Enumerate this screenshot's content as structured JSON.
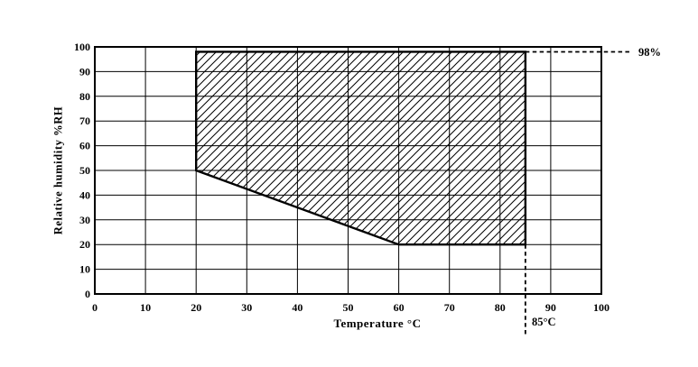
{
  "figure": {
    "background": "#ffffff",
    "line_color": "#000000"
  },
  "chart_data": {
    "type": "area",
    "title": "",
    "xlabel": "Temperature °C",
    "ylabel": "Relative humidity %RH",
    "xlim": [
      0,
      100
    ],
    "ylim": [
      0,
      100
    ],
    "xticks": [
      0,
      10,
      20,
      30,
      40,
      50,
      60,
      70,
      80,
      90,
      100
    ],
    "yticks": [
      0,
      10,
      20,
      30,
      40,
      50,
      60,
      70,
      80,
      90,
      100
    ],
    "grid": true,
    "legend_position": "none",
    "series": [
      {
        "name": "allowed-operating-region",
        "style": "hatched-polygon",
        "fill": "diagonal-hatch",
        "points": [
          [
            20,
            98
          ],
          [
            85,
            98
          ],
          [
            85,
            20
          ],
          [
            60,
            20
          ],
          [
            20,
            50
          ]
        ]
      }
    ],
    "annotations": [
      {
        "id": "rh-max",
        "type": "dashed-hline",
        "y": 98,
        "x_start": 85,
        "label": "98%"
      },
      {
        "id": "temp-max",
        "type": "dashed-vline",
        "x": 85,
        "y_start": 20,
        "label": "85°C"
      }
    ]
  }
}
